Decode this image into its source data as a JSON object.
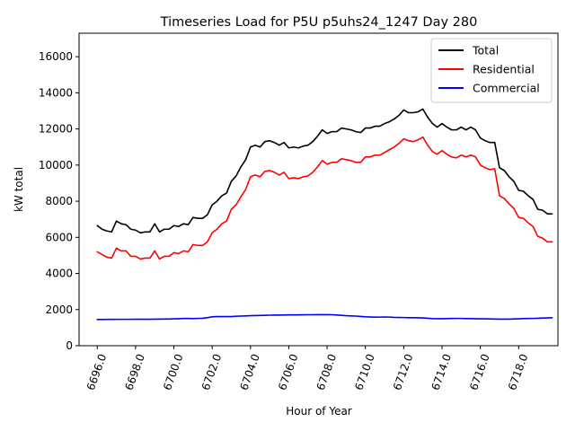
{
  "chart_data": {
    "type": "line",
    "title": "Timeseries Load for P5U p5uhs24_1247  Day 280",
    "xlabel": "Hour of Year",
    "ylabel": "kW total",
    "xlim": [
      6695.05,
      6720.05
    ],
    "ylim": [
      0,
      17300
    ],
    "x_ticks": [
      6696,
      6698,
      6700,
      6702,
      6704,
      6706,
      6708,
      6710,
      6712,
      6714,
      6716,
      6718
    ],
    "x_tick_labels": [
      "6696.0",
      "6698.0",
      "6700.0",
      "6702.0",
      "6704.0",
      "6706.0",
      "6708.0",
      "6710.0",
      "6712.0",
      "6714.0",
      "6716.0",
      "6718.0"
    ],
    "y_ticks": [
      0,
      2000,
      4000,
      6000,
      8000,
      10000,
      12000,
      14000,
      16000
    ],
    "y_tick_labels": [
      "0",
      "2000",
      "4000",
      "6000",
      "8000",
      "10000",
      "12000",
      "14000",
      "16000"
    ],
    "legend_position": "top-right",
    "x_start": 6696,
    "x_step": 0.25,
    "series": [
      {
        "name": "Total",
        "color": "#000000",
        "values": [
          6650,
          6450,
          6350,
          6300,
          6900,
          6750,
          6700,
          6450,
          6400,
          6250,
          6300,
          6300,
          6750,
          6300,
          6450,
          6450,
          6650,
          6600,
          6750,
          6700,
          7100,
          7050,
          7050,
          7250,
          7800,
          8000,
          8300,
          8450,
          9100,
          9400,
          9900,
          10300,
          11000,
          11100,
          11000,
          11300,
          11350,
          11250,
          11100,
          11250,
          10950,
          11000,
          10950,
          11050,
          11100,
          11300,
          11600,
          11950,
          11750,
          11850,
          11850,
          12050,
          12000,
          11950,
          11850,
          11800,
          12050,
          12050,
          12150,
          12150,
          12300,
          12400,
          12550,
          12750,
          13050,
          12900,
          12900,
          12950,
          13100,
          12650,
          12300,
          12100,
          12300,
          12100,
          11950,
          11950,
          12100,
          11950,
          12100,
          11950,
          11500,
          11350,
          11250,
          11250,
          9850,
          9700,
          9350,
          9100,
          8600,
          8550,
          8300,
          8100,
          7550,
          7500,
          7300,
          7300
        ]
      },
      {
        "name": "Residential",
        "color": "#ff0000",
        "values": [
          5200,
          5050,
          4900,
          4850,
          5400,
          5250,
          5250,
          4950,
          4950,
          4800,
          4850,
          4850,
          5250,
          4800,
          4950,
          4950,
          5150,
          5100,
          5250,
          5200,
          5600,
          5550,
          5550,
          5750,
          6250,
          6450,
          6750,
          6900,
          7550,
          7800,
          8250,
          8650,
          9350,
          9450,
          9350,
          9650,
          9700,
          9600,
          9450,
          9600,
          9250,
          9300,
          9250,
          9350,
          9400,
          9600,
          9900,
          10250,
          10050,
          10150,
          10150,
          10350,
          10300,
          10250,
          10150,
          10150,
          10450,
          10450,
          10550,
          10550,
          10700,
          10850,
          11000,
          11200,
          11450,
          11350,
          11300,
          11400,
          11550,
          11100,
          10750,
          10600,
          10800,
          10600,
          10450,
          10400,
          10550,
          10450,
          10550,
          10450,
          10000,
          9850,
          9750,
          9800,
          8300,
          8150,
          7850,
          7600,
          7100,
          7050,
          6800,
          6600,
          6050,
          5950,
          5750,
          5750
        ]
      },
      {
        "name": "Commercial",
        "color": "#0000ff",
        "values": [
          1450,
          1450,
          1455,
          1455,
          1460,
          1460,
          1460,
          1460,
          1465,
          1465,
          1465,
          1465,
          1470,
          1470,
          1475,
          1475,
          1490,
          1495,
          1505,
          1505,
          1500,
          1510,
          1520,
          1550,
          1600,
          1610,
          1610,
          1615,
          1610,
          1630,
          1640,
          1650,
          1660,
          1670,
          1675,
          1680,
          1690,
          1695,
          1695,
          1700,
          1705,
          1705,
          1705,
          1710,
          1715,
          1715,
          1720,
          1720,
          1720,
          1715,
          1700,
          1680,
          1660,
          1650,
          1640,
          1620,
          1600,
          1590,
          1580,
          1585,
          1590,
          1585,
          1570,
          1565,
          1560,
          1550,
          1550,
          1545,
          1540,
          1520,
          1500,
          1495,
          1495,
          1500,
          1505,
          1510,
          1510,
          1500,
          1500,
          1495,
          1490,
          1490,
          1480,
          1475,
          1470,
          1470,
          1470,
          1480,
          1490,
          1500,
          1505,
          1510,
          1520,
          1530,
          1540,
          1550
        ]
      }
    ]
  }
}
